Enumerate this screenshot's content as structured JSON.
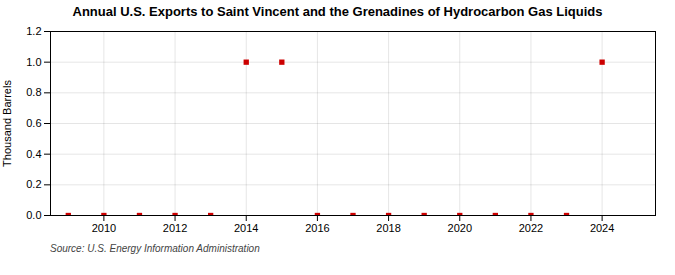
{
  "chart_data": {
    "type": "scatter",
    "title": "Annual U.S. Exports to Saint Vincent and the Grenadines of Hydrocarbon Gas Liquids",
    "ylabel": "Thousand Barrels",
    "caption": "Source: U.S. Energy Information Administration",
    "x": [
      2009,
      2010,
      2011,
      2012,
      2013,
      2014,
      2015,
      2016,
      2017,
      2018,
      2019,
      2020,
      2021,
      2022,
      2023,
      2024
    ],
    "values": [
      0,
      0,
      0,
      0,
      0,
      1,
      1,
      0,
      0,
      0,
      0,
      0,
      0,
      0,
      0,
      1
    ],
    "color": "#cc0000",
    "marker": "square",
    "xlim": [
      2008.5,
      2025.5
    ],
    "xticks": [
      2010,
      2012,
      2014,
      2016,
      2018,
      2020,
      2022,
      2024
    ],
    "ylim": [
      0,
      1.2
    ],
    "yticks": [
      {
        "value": 0,
        "label": "0.0"
      },
      0.2,
      0.4,
      0.6,
      0.8,
      {
        "value": 1,
        "label": "1.0"
      },
      1.2
    ],
    "grid": true
  }
}
